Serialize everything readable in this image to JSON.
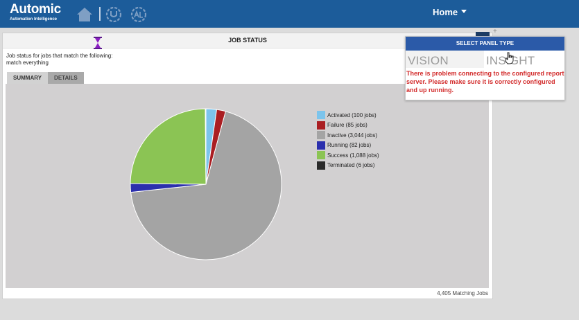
{
  "topbar": {
    "brand": "Automic",
    "tagline": "Automation Intelligence",
    "nav_icons": [
      "home-icon",
      "upload-icon",
      "automation-logo-icon"
    ],
    "home_label": "Home"
  },
  "panel": {
    "title": "JOB STATUS",
    "description_line1": "Job status for jobs that match the following:",
    "description_line2": "match everything",
    "tabs": [
      {
        "label": "SUMMARY",
        "active": true
      },
      {
        "label": "DETAILS",
        "active": false
      }
    ],
    "matching_jobs": "4,405 Matching Jobs"
  },
  "chart_data": {
    "type": "pie",
    "title": "",
    "slices": [
      {
        "label": "Activated (100 jobs)",
        "value": 100,
        "color": "#7cc4ec"
      },
      {
        "label": "Failure (85 jobs)",
        "value": 85,
        "color": "#aa1e22"
      },
      {
        "label": "Inactive (3,044 jobs)",
        "value": 3044,
        "color": "#a4a4a4"
      },
      {
        "label": "Running (82 jobs)",
        "value": 82,
        "color": "#2b2fad"
      },
      {
        "label": "Success (1,088 jobs)",
        "value": 1088,
        "color": "#8bc454"
      },
      {
        "label": "Terminated (6 jobs)",
        "value": 6,
        "color": "#2a2a2a"
      }
    ],
    "legend_position": "right"
  },
  "popup": {
    "title": "SELECT PANEL TYPE",
    "options": [
      "VISION",
      "INSIGHT"
    ],
    "error": "There is problem connecting to the configured report server. Please make sure it is correctly configured and up running."
  },
  "colors": {
    "topbar": "#1c5c9a",
    "popup_header": "#2b5aa8",
    "error_text": "#d22a2a"
  }
}
